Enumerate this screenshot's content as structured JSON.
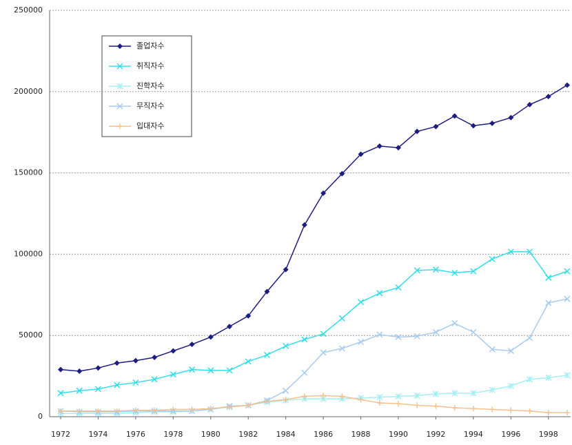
{
  "chart_data": {
    "type": "line",
    "x": [
      1972,
      1973,
      1974,
      1975,
      1976,
      1977,
      1978,
      1979,
      1980,
      1981,
      1982,
      1983,
      1984,
      1985,
      1986,
      1987,
      1988,
      1989,
      1990,
      1991,
      1992,
      1993,
      1994,
      1995,
      1996,
      1997,
      1998,
      1999
    ],
    "xlim": [
      1972,
      1999
    ],
    "xticks": [
      1972,
      1974,
      1976,
      1978,
      1980,
      1982,
      1984,
      1986,
      1988,
      1990,
      1992,
      1994,
      1996,
      1998
    ],
    "ylim": [
      0,
      250000
    ],
    "yticks": [
      0,
      50000,
      100000,
      150000,
      200000,
      250000
    ],
    "grid": true,
    "legend": "upper left",
    "series": [
      {
        "name": "졸업자수",
        "color": "#1c1c82",
        "marker": "diamond",
        "values": [
          29000,
          28000,
          30000,
          33000,
          34500,
          36500,
          40500,
          44500,
          49000,
          55500,
          62000,
          77000,
          90500,
          118000,
          137500,
          149500,
          161500,
          166500,
          165500,
          175500,
          178500,
          185000,
          179000,
          180500,
          184000,
          192000,
          197000,
          204000
        ]
      },
      {
        "name": "취직자수",
        "color": "#33dde8",
        "marker": "x",
        "values": [
          14500,
          16000,
          17000,
          19500,
          21000,
          23000,
          26000,
          29000,
          28500,
          28500,
          34000,
          38000,
          43500,
          47500,
          51000,
          60500,
          70500,
          76000,
          79500,
          90000,
          90500,
          88500,
          89500,
          97000,
          101500,
          101500,
          85500,
          89500
        ]
      },
      {
        "name": "진학자수",
        "color": "#a6eef5",
        "marker": "star",
        "values": [
          2000,
          2000,
          2000,
          2000,
          2500,
          3000,
          3000,
          3500,
          4500,
          6000,
          7000,
          9000,
          10000,
          11000,
          11000,
          11000,
          11500,
          12000,
          12500,
          13000,
          14000,
          14500,
          14500,
          16500,
          19000,
          23000,
          24000,
          25500
        ]
      },
      {
        "name": "무직자수",
        "color": "#a8cbf0",
        "marker": "x",
        "values": [
          3500,
          3000,
          3000,
          3000,
          3500,
          3500,
          3500,
          3500,
          4500,
          6500,
          7000,
          10000,
          16000,
          27000,
          39500,
          42000,
          46000,
          50500,
          49000,
          49500,
          52000,
          57500,
          52000,
          41500,
          40500,
          48500,
          70000,
          72500
        ]
      },
      {
        "name": "입대자수",
        "color": "#f5c08a",
        "marker": "plus",
        "values": [
          3500,
          3500,
          3500,
          3500,
          4000,
          4000,
          4500,
          4500,
          5000,
          6000,
          7000,
          9500,
          10500,
          12500,
          13000,
          12500,
          10500,
          8500,
          8000,
          7000,
          6500,
          5500,
          5000,
          4500,
          4000,
          3500,
          2500,
          2500
        ]
      }
    ]
  }
}
